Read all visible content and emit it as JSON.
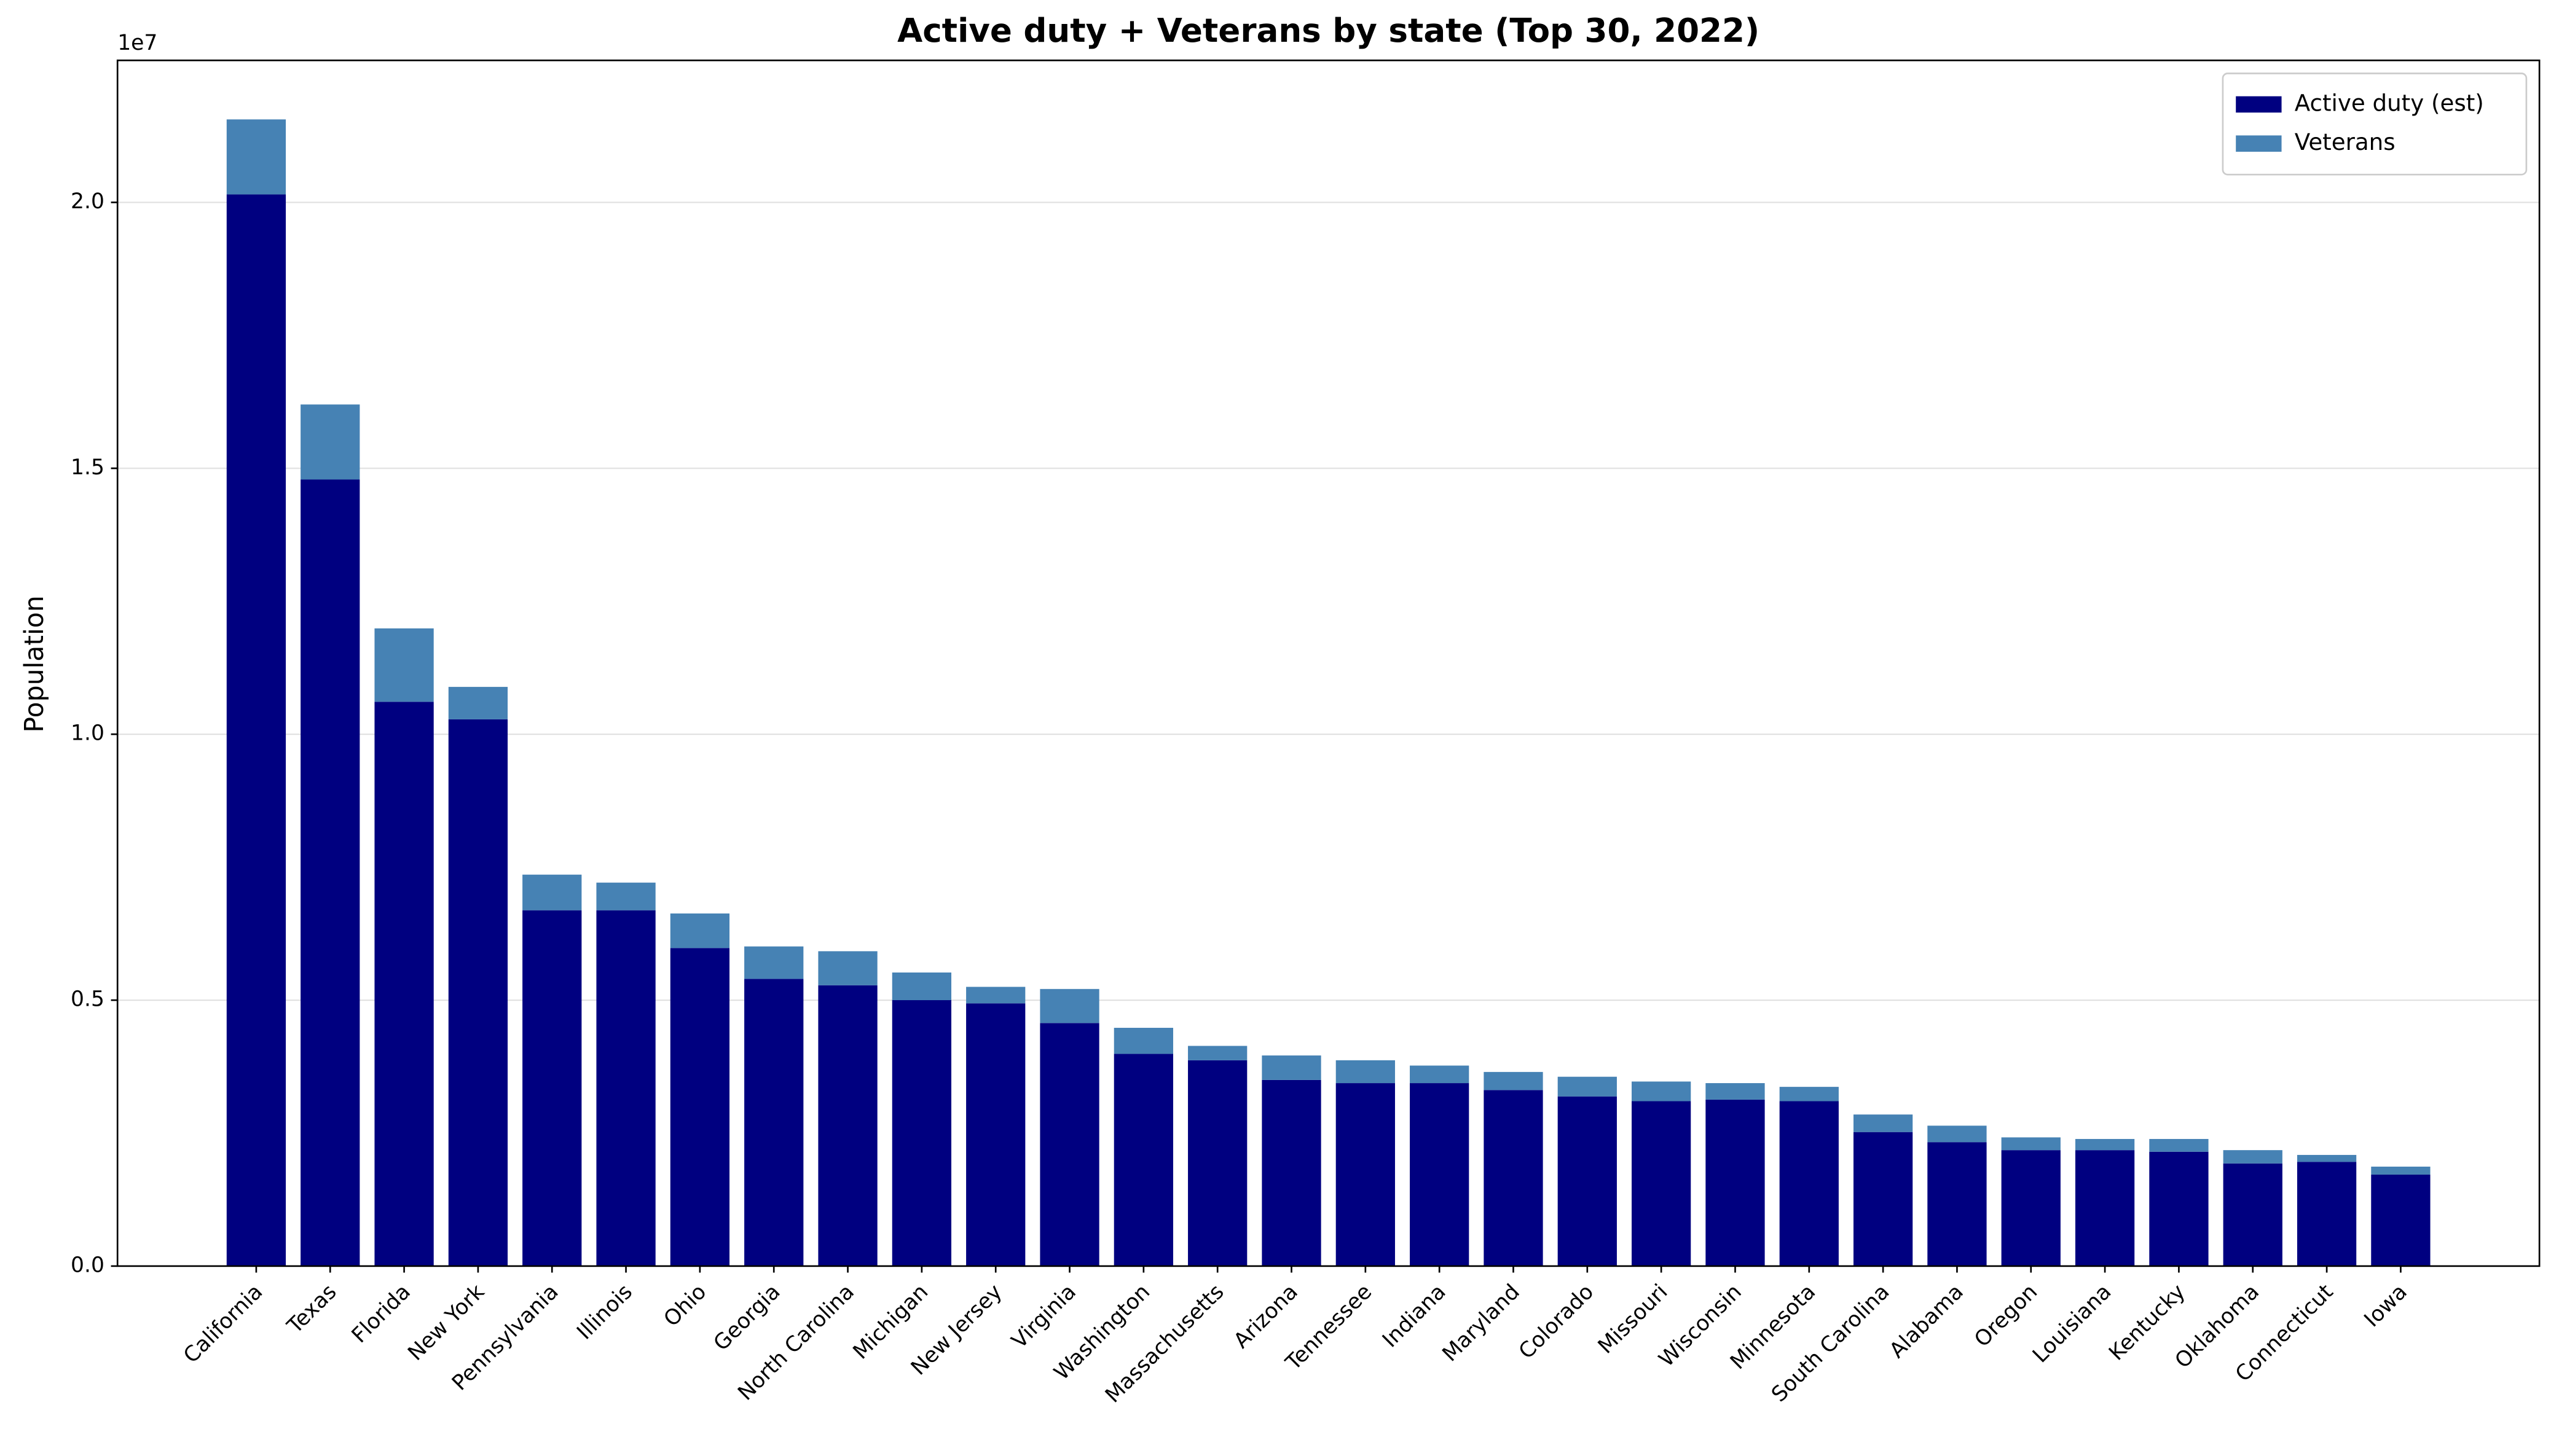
{
  "chart_data": {
    "type": "stacked_bar",
    "title": "Active duty + Veterans by state (Top 30, 2022)",
    "y_label": "Population",
    "y_offset_label": "1e7",
    "categories": [
      "California",
      "Texas",
      "Florida",
      "New York",
      "Pennsylvania",
      "Illinois",
      "Ohio",
      "Georgia",
      "North Carolina",
      "Michigan",
      "New Jersey",
      "Virginia",
      "Washington",
      "Massachusetts",
      "Arizona",
      "Tennessee",
      "Indiana",
      "Maryland",
      "Colorado",
      "Missouri",
      "Wisconsin",
      "Minnesota",
      "South Carolina",
      "Alabama",
      "Oregon",
      "Louisiana",
      "Kentucky",
      "Oklahoma",
      "Connecticut",
      "Iowa"
    ],
    "series": [
      {
        "name": "Active duty (est)",
        "color": "#000080",
        "values": [
          20150000,
          14790000,
          10610000,
          10280000,
          6690000,
          6690000,
          5980000,
          5400000,
          5280000,
          5000000,
          4940000,
          4570000,
          3990000,
          3870000,
          3500000,
          3440000,
          3440000,
          3310000,
          3190000,
          3100000,
          3130000,
          3100000,
          2520000,
          2330000,
          2180000,
          2180000,
          2150000,
          1930000,
          1960000,
          1720000
        ]
      },
      {
        "name": "Veterans",
        "color": "#4682b4",
        "values": [
          1410000,
          1410000,
          1380000,
          610000,
          670000,
          520000,
          650000,
          610000,
          640000,
          520000,
          310000,
          640000,
          490000,
          270000,
          460000,
          430000,
          330000,
          340000,
          370000,
          370000,
          310000,
          270000,
          330000,
          310000,
          240000,
          210000,
          240000,
          250000,
          130000,
          150000
        ]
      }
    ],
    "ylim": [
      0,
      22670000
    ],
    "yticks": [
      {
        "value": 0,
        "label": "0.0"
      },
      {
        "value": 5000000,
        "label": "0.5"
      },
      {
        "value": 10000000,
        "label": "1.0"
      },
      {
        "value": 15000000,
        "label": "1.5"
      },
      {
        "value": 20000000,
        "label": "2.0"
      }
    ],
    "grid": true,
    "legend": "upper-right"
  }
}
